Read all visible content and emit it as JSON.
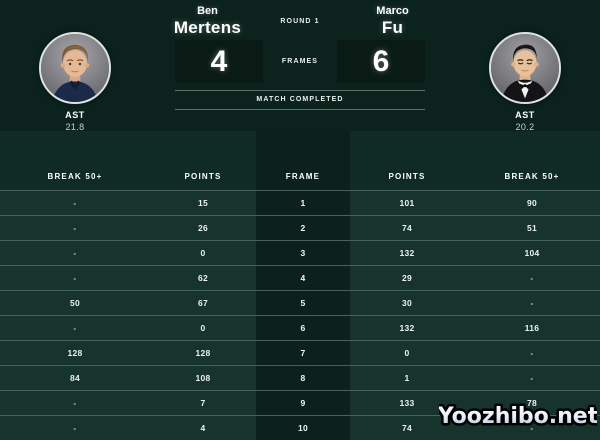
{
  "header": {
    "round_label": "ROUND 1",
    "frames_label": "FRAMES",
    "status_label": "MATCH COMPLETED",
    "left_player": {
      "first_name": "Ben",
      "last_name": "Mertens",
      "frames_won": "4",
      "stat_label": "AST",
      "stat_value": "21.8",
      "avatar": "ben-mertens-portrait"
    },
    "right_player": {
      "first_name": "Marco",
      "last_name": "Fu",
      "frames_won": "6",
      "stat_label": "AST",
      "stat_value": "20.2",
      "avatar": "marco-fu-portrait"
    }
  },
  "scoreboard_table": {
    "headers": [
      "BREAK 50+",
      "POINTS",
      "FRAME",
      "POINTS",
      "BREAK 50+"
    ],
    "rows": [
      [
        "-",
        "15",
        "1",
        "101",
        "90"
      ],
      [
        "-",
        "26",
        "2",
        "74",
        "51"
      ],
      [
        "-",
        "0",
        "3",
        "132",
        "104"
      ],
      [
        "-",
        "62",
        "4",
        "29",
        "-"
      ],
      [
        "50",
        "67",
        "5",
        "30",
        "-"
      ],
      [
        "-",
        "0",
        "6",
        "132",
        "116"
      ],
      [
        "128",
        "128",
        "7",
        "0",
        "-"
      ],
      [
        "84",
        "108",
        "8",
        "1",
        "-"
      ],
      [
        "-",
        "7",
        "9",
        "133",
        "78"
      ],
      [
        "-",
        "4",
        "10",
        "74",
        "-"
      ]
    ]
  },
  "watermark": {
    "text": "Yoozhibo.net"
  },
  "colors": {
    "header_bg": "#0c231d",
    "table_head_bg": "#102b24",
    "table_rows_bg": "#16342c",
    "frame_column_bg": "#0c211c",
    "score_box_bg": "#0a1b16",
    "text": "#f2f6f4"
  }
}
